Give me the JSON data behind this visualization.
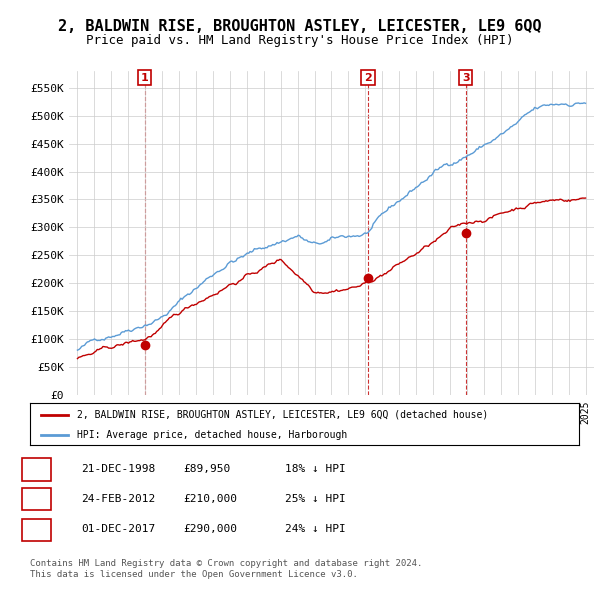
{
  "title": "2, BALDWIN RISE, BROUGHTON ASTLEY, LEICESTER, LE9 6QQ",
  "subtitle": "Price paid vs. HM Land Registry's House Price Index (HPI)",
  "title_fontsize": 11,
  "subtitle_fontsize": 9,
  "xlim_start": 1994.5,
  "xlim_end": 2025.5,
  "ylim_min": 0,
  "ylim_max": 580000,
  "yticks": [
    0,
    50000,
    100000,
    150000,
    200000,
    250000,
    300000,
    350000,
    400000,
    450000,
    500000,
    550000
  ],
  "ytick_labels": [
    "£0",
    "£50K",
    "£100K",
    "£150K",
    "£200K",
    "£250K",
    "£300K",
    "£350K",
    "£400K",
    "£450K",
    "£500K",
    "£550K"
  ],
  "sale_dates": [
    1998.97,
    2012.15,
    2017.92
  ],
  "sale_prices": [
    89950,
    210000,
    290000
  ],
  "sale_labels": [
    "1",
    "2",
    "3"
  ],
  "hpi_color": "#5b9bd5",
  "sale_color": "#c00000",
  "background_color": "#ffffff",
  "grid_color": "#cccccc",
  "legend_entries": [
    "2, BALDWIN RISE, BROUGHTON ASTLEY, LEICESTER, LE9 6QQ (detached house)",
    "HPI: Average price, detached house, Harborough"
  ],
  "table_rows": [
    {
      "label": "1",
      "date": "21-DEC-1998",
      "price": "£89,950",
      "hpi": "18% ↓ HPI"
    },
    {
      "label": "2",
      "date": "24-FEB-2012",
      "price": "£210,000",
      "hpi": "25% ↓ HPI"
    },
    {
      "label": "3",
      "date": "01-DEC-2017",
      "price": "£290,000",
      "hpi": "24% ↓ HPI"
    }
  ],
  "footnote": "Contains HM Land Registry data © Crown copyright and database right 2024.\nThis data is licensed under the Open Government Licence v3.0."
}
